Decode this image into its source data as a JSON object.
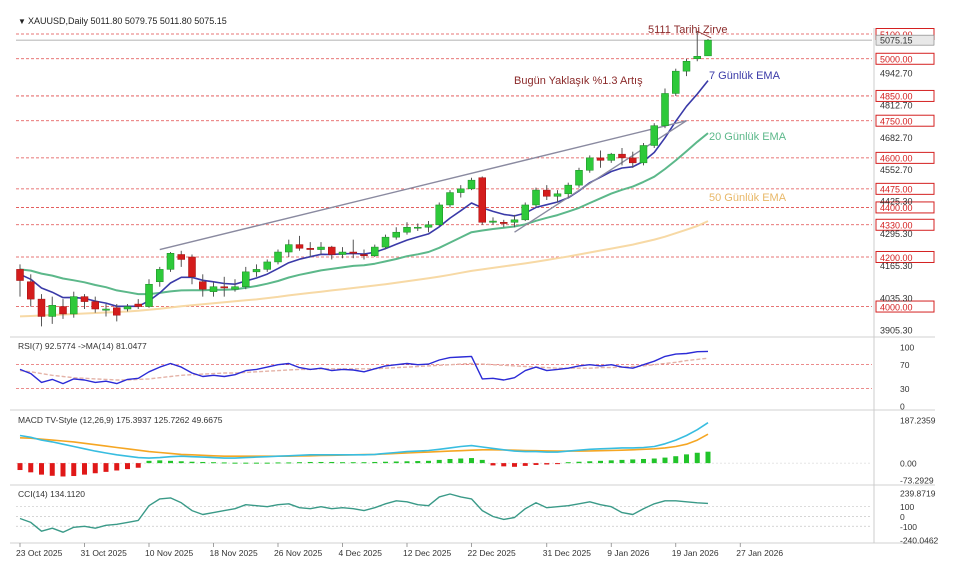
{
  "chart_data": {
    "type": "candlestick",
    "header": {
      "arrow": "▼",
      "text": "XAUUSD,Daily  5011.80 5079.75 5011.80 5075.15"
    },
    "annotations": {
      "peak": "5111 Tarihi Zirve",
      "daily_gain": "Bugün Yaklaşık %1.3 Artış",
      "ema7": "7 Günlük EMA",
      "ema20": "20 Günlük EMA",
      "ema50": "50 Günlük EMA"
    },
    "price_axis": {
      "red_levels": [
        {
          "label": "5100.00",
          "value": 5100
        },
        {
          "label": "5000.00",
          "value": 5000
        },
        {
          "label": "4850.00",
          "value": 4850
        },
        {
          "label": "4750.00",
          "value": 4750
        },
        {
          "label": "4600.00",
          "value": 4600
        },
        {
          "label": "4475.00",
          "value": 4475
        },
        {
          "label": "4400.00",
          "value": 4400
        },
        {
          "label": "4330.00",
          "value": 4330
        },
        {
          "label": "4200.00",
          "value": 4200
        },
        {
          "label": "4000.00",
          "value": 4000
        }
      ],
      "grey_ticks": [
        {
          "label": "4942.70",
          "value": 4942.7
        },
        {
          "label": "4812.70",
          "value": 4812.7
        },
        {
          "label": "4682.70",
          "value": 4682.7
        },
        {
          "label": "4552.70",
          "value": 4552.7
        },
        {
          "label": "4425.30",
          "value": 4425.3
        },
        {
          "label": "4295.30",
          "value": 4295.3
        },
        {
          "label": "4165.30",
          "value": 4165.3
        },
        {
          "label": "4035.30",
          "value": 4035.3
        },
        {
          "label": "3905.30",
          "value": 3905.3
        }
      ],
      "current": {
        "label": "5075.15",
        "value": 5075.15
      }
    },
    "x_axis_labels": [
      {
        "label": "23 Oct 2025",
        "index": 0
      },
      {
        "label": "31 Oct 2025",
        "index": 6
      },
      {
        "label": "10 Nov 2025",
        "index": 12
      },
      {
        "label": "18 Nov 2025",
        "index": 18
      },
      {
        "label": "26 Nov 2025",
        "index": 24
      },
      {
        "label": "4 Dec 2025",
        "index": 30
      },
      {
        "label": "12 Dec 2025",
        "index": 36
      },
      {
        "label": "22 Dec 2025",
        "index": 42
      },
      {
        "label": "31 Dec 2025",
        "index": 49
      },
      {
        "label": "9 Jan 2026",
        "index": 55
      },
      {
        "label": "19 Jan 2026",
        "index": 61
      },
      {
        "label": "27 Jan 2026",
        "index": 67
      }
    ],
    "candles": [
      {
        "o": 4150,
        "h": 4170,
        "l": 4040,
        "c": 4105
      },
      {
        "o": 4100,
        "h": 4130,
        "l": 4000,
        "c": 4030
      },
      {
        "o": 4030,
        "h": 4050,
        "l": 3920,
        "c": 3960
      },
      {
        "o": 3960,
        "h": 4040,
        "l": 3930,
        "c": 4005
      },
      {
        "o": 4000,
        "h": 4030,
        "l": 3950,
        "c": 3970
      },
      {
        "o": 3970,
        "h": 4060,
        "l": 3955,
        "c": 4040
      },
      {
        "o": 4040,
        "h": 4050,
        "l": 3990,
        "c": 4020
      },
      {
        "o": 4020,
        "h": 4040,
        "l": 3975,
        "c": 3990
      },
      {
        "o": 3985,
        "h": 4010,
        "l": 3960,
        "c": 3990
      },
      {
        "o": 3995,
        "h": 4010,
        "l": 3940,
        "c": 3965
      },
      {
        "o": 3990,
        "h": 4010,
        "l": 3980,
        "c": 4000
      },
      {
        "o": 4010,
        "h": 4030,
        "l": 3990,
        "c": 4000
      },
      {
        "o": 4000,
        "h": 4110,
        "l": 3995,
        "c": 4090
      },
      {
        "o": 4100,
        "h": 4160,
        "l": 4080,
        "c": 4150
      },
      {
        "o": 4150,
        "h": 4220,
        "l": 4140,
        "c": 4215
      },
      {
        "o": 4210,
        "h": 4225,
        "l": 4160,
        "c": 4190
      },
      {
        "o": 4200,
        "h": 4210,
        "l": 4090,
        "c": 4120
      },
      {
        "o": 4100,
        "h": 4130,
        "l": 4040,
        "c": 4070
      },
      {
        "o": 4060,
        "h": 4100,
        "l": 4040,
        "c": 4080
      },
      {
        "o": 4080,
        "h": 4120,
        "l": 4040,
        "c": 4075
      },
      {
        "o": 4070,
        "h": 4110,
        "l": 4060,
        "c": 4080
      },
      {
        "o": 4080,
        "h": 4160,
        "l": 4070,
        "c": 4140
      },
      {
        "o": 4140,
        "h": 4170,
        "l": 4120,
        "c": 4150
      },
      {
        "o": 4150,
        "h": 4190,
        "l": 4140,
        "c": 4180
      },
      {
        "o": 4180,
        "h": 4230,
        "l": 4170,
        "c": 4220
      },
      {
        "o": 4220,
        "h": 4270,
        "l": 4200,
        "c": 4250
      },
      {
        "o": 4250,
        "h": 4285,
        "l": 4225,
        "c": 4235
      },
      {
        "o": 4235,
        "h": 4260,
        "l": 4200,
        "c": 4230
      },
      {
        "o": 4230,
        "h": 4260,
        "l": 4210,
        "c": 4240
      },
      {
        "o": 4240,
        "h": 4245,
        "l": 4190,
        "c": 4210
      },
      {
        "o": 4210,
        "h": 4240,
        "l": 4195,
        "c": 4220
      },
      {
        "o": 4220,
        "h": 4270,
        "l": 4195,
        "c": 4215
      },
      {
        "o": 4210,
        "h": 4230,
        "l": 4190,
        "c": 4205
      },
      {
        "o": 4205,
        "h": 4250,
        "l": 4200,
        "c": 4240
      },
      {
        "o": 4240,
        "h": 4290,
        "l": 4230,
        "c": 4280
      },
      {
        "o": 4280,
        "h": 4320,
        "l": 4270,
        "c": 4300
      },
      {
        "o": 4300,
        "h": 4340,
        "l": 4290,
        "c": 4320
      },
      {
        "o": 4320,
        "h": 4335,
        "l": 4305,
        "c": 4320
      },
      {
        "o": 4320,
        "h": 4345,
        "l": 4300,
        "c": 4330
      },
      {
        "o": 4330,
        "h": 4420,
        "l": 4325,
        "c": 4410
      },
      {
        "o": 4410,
        "h": 4470,
        "l": 4400,
        "c": 4460
      },
      {
        "o": 4460,
        "h": 4490,
        "l": 4440,
        "c": 4475
      },
      {
        "o": 4475,
        "h": 4520,
        "l": 4470,
        "c": 4510
      },
      {
        "o": 4520,
        "h": 4525,
        "l": 4330,
        "c": 4340
      },
      {
        "o": 4340,
        "h": 4360,
        "l": 4330,
        "c": 4345
      },
      {
        "o": 4340,
        "h": 4350,
        "l": 4320,
        "c": 4335
      },
      {
        "o": 4340,
        "h": 4370,
        "l": 4320,
        "c": 4350
      },
      {
        "o": 4350,
        "h": 4420,
        "l": 4345,
        "c": 4410
      },
      {
        "o": 4410,
        "h": 4480,
        "l": 4400,
        "c": 4470
      },
      {
        "o": 4470,
        "h": 4490,
        "l": 4430,
        "c": 4445
      },
      {
        "o": 4445,
        "h": 4470,
        "l": 4420,
        "c": 4455
      },
      {
        "o": 4455,
        "h": 4500,
        "l": 4440,
        "c": 4490
      },
      {
        "o": 4490,
        "h": 4560,
        "l": 4480,
        "c": 4550
      },
      {
        "o": 4550,
        "h": 4610,
        "l": 4540,
        "c": 4600
      },
      {
        "o": 4600,
        "h": 4630,
        "l": 4560,
        "c": 4590
      },
      {
        "o": 4590,
        "h": 4620,
        "l": 4580,
        "c": 4615
      },
      {
        "o": 4615,
        "h": 4640,
        "l": 4570,
        "c": 4600
      },
      {
        "o": 4600,
        "h": 4625,
        "l": 4560,
        "c": 4580
      },
      {
        "o": 4580,
        "h": 4660,
        "l": 4570,
        "c": 4650
      },
      {
        "o": 4650,
        "h": 4740,
        "l": 4640,
        "c": 4730
      },
      {
        "o": 4730,
        "h": 4880,
        "l": 4720,
        "c": 4860
      },
      {
        "o": 4860,
        "h": 4960,
        "l": 4850,
        "c": 4950
      },
      {
        "o": 4950,
        "h": 5000,
        "l": 4930,
        "c": 4990
      },
      {
        "o": 5000,
        "h": 5111,
        "l": 4990,
        "c": 5010
      },
      {
        "o": 5011.8,
        "h": 5079.75,
        "l": 5011.8,
        "c": 5075.15
      }
    ],
    "lines": {
      "ema7": [
        4130,
        4110,
        4075,
        4058,
        4036,
        4037,
        4033,
        4022,
        4014,
        4001,
        4001,
        4001,
        4023,
        4055,
        4095,
        4118,
        4118,
        4106,
        4100,
        4093,
        4090,
        4103,
        4115,
        4131,
        4153,
        4177,
        4191,
        4201,
        4211,
        4210,
        4213,
        4214,
        4212,
        4219,
        4234,
        4251,
        4268,
        4281,
        4293,
        4322,
        4357,
        4387,
        4418,
        4398,
        4384,
        4372,
        4366,
        4377,
        4400,
        4411,
        4422,
        4439,
        4467,
        4500,
        4522,
        4545,
        4559,
        4564,
        4586,
        4622,
        4681,
        4748,
        4808,
        4858,
        4912
      ],
      "ema20": [
        4150,
        4145,
        4133,
        4125,
        4113,
        4106,
        4098,
        4087,
        4078,
        4065,
        4058,
        4050,
        4050,
        4055,
        4061,
        4065,
        4066,
        4066,
        4067,
        4068,
        4069,
        4076,
        4083,
        4092,
        4103,
        4117,
        4128,
        4137,
        4146,
        4152,
        4158,
        4164,
        4167,
        4173,
        4182,
        4192,
        4203,
        4211,
        4220,
        4237,
        4258,
        4279,
        4300,
        4307,
        4313,
        4318,
        4323,
        4332,
        4346,
        4358,
        4369,
        4383,
        4398,
        4418,
        4437,
        4456,
        4471,
        4484,
        4503,
        4524,
        4555,
        4590,
        4627,
        4665,
        4700
      ],
      "ema50": [
        3960,
        3962,
        3964,
        3966,
        3968,
        3970,
        3972,
        3974,
        3976,
        3978,
        3980,
        3983,
        3987,
        3991,
        3996,
        4001,
        4005,
        4009,
        4013,
        4017,
        4021,
        4025,
        4029,
        4034,
        4039,
        4045,
        4050,
        4055,
        4060,
        4065,
        4070,
        4075,
        4080,
        4085,
        4090,
        4096,
        4102,
        4108,
        4114,
        4121,
        4128,
        4136,
        4144,
        4150,
        4156,
        4162,
        4168,
        4174,
        4181,
        4188,
        4195,
        4202,
        4210,
        4218,
        4226,
        4234,
        4242,
        4250,
        4260,
        4270,
        4282,
        4296,
        4310,
        4325,
        4345
      ]
    },
    "trendlines": [
      {
        "from": {
          "index": 13,
          "value": 4230
        },
        "to": {
          "index": 62,
          "value": 4750
        }
      },
      {
        "from": {
          "index": 46,
          "value": 4300
        },
        "to": {
          "index": 62,
          "value": 4750
        }
      }
    ],
    "rsi": {
      "title": "RSI(7) 92.5774  ->MA(14) 81.0477",
      "range": [
        0,
        100
      ],
      "levels": [
        {
          "label": "100",
          "value": 100
        },
        {
          "label": "70",
          "value": 70
        },
        {
          "label": "30",
          "value": 30
        },
        {
          "label": "0",
          "value": 0
        }
      ],
      "values": [
        62,
        55,
        40,
        45,
        38,
        46,
        44,
        40,
        42,
        38,
        45,
        47,
        58,
        66,
        72,
        66,
        56,
        50,
        52,
        50,
        53,
        60,
        62,
        66,
        70,
        72,
        65,
        62,
        64,
        60,
        62,
        61,
        58,
        63,
        68,
        70,
        72,
        70,
        71,
        78,
        82,
        83,
        84,
        46,
        47,
        44,
        48,
        60,
        66,
        60,
        62,
        64,
        68,
        70,
        68,
        70,
        66,
        64,
        70,
        76,
        84,
        88,
        89,
        92,
        92.5774
      ],
      "ma": [
        60,
        58,
        55,
        52,
        50,
        48,
        47,
        46,
        45,
        44,
        44,
        45,
        46,
        48,
        50,
        52,
        53,
        54,
        55,
        56,
        56,
        57,
        58,
        59,
        60,
        61,
        62,
        62,
        63,
        63,
        63,
        63,
        63,
        63,
        64,
        65,
        66,
        67,
        68,
        69,
        70,
        71,
        72,
        71,
        70,
        69,
        68,
        67,
        66,
        65,
        64,
        64,
        64,
        64,
        65,
        65,
        66,
        67,
        68,
        70,
        72,
        74,
        77,
        79,
        81.0477
      ]
    },
    "macd": {
      "title": "MACD TV-Style (12,26,9) 175.3937 125.7262 49.6675",
      "range": [
        -73.2929,
        187.2359
      ],
      "labels": [
        {
          "label": "187.2359",
          "value": 187.2359
        },
        {
          "label": "0.00",
          "value": 0
        },
        {
          "label": "-73.2929",
          "value": -73.2929
        }
      ],
      "macd": [
        120,
        112,
        100,
        92,
        82,
        72,
        62,
        52,
        44,
        36,
        30,
        24,
        22,
        24,
        28,
        30,
        28,
        26,
        24,
        22,
        22,
        24,
        26,
        28,
        30,
        32,
        34,
        36,
        36,
        36,
        36,
        36,
        36,
        38,
        42,
        46,
        50,
        52,
        55,
        60,
        66,
        72,
        76,
        70,
        64,
        58,
        52,
        50,
        50,
        48,
        48,
        52,
        56,
        60,
        62,
        64,
        66,
        66,
        68,
        72,
        84,
        100,
        120,
        145,
        175.39
      ],
      "signal": [
        110,
        108,
        104,
        100,
        96,
        92,
        86,
        80,
        74,
        68,
        62,
        56,
        50,
        46,
        42,
        38,
        36,
        34,
        32,
        30,
        30,
        30,
        30,
        30,
        30,
        30,
        31,
        32,
        33,
        34,
        35,
        36,
        37,
        38,
        40,
        42,
        44,
        46,
        48,
        50,
        52,
        54,
        56,
        58,
        58,
        57,
        56,
        55,
        54,
        53,
        52,
        52,
        52,
        53,
        54,
        55,
        56,
        58,
        60,
        62,
        66,
        72,
        82,
        100,
        125.73
      ],
      "hist": [
        -30,
        -40,
        -50,
        -55,
        -58,
        -56,
        -50,
        -44,
        -38,
        -32,
        -26,
        -20,
        10,
        12,
        10,
        8,
        6,
        5,
        4,
        3,
        2,
        2,
        2,
        2,
        3,
        3,
        4,
        5,
        5,
        5,
        4,
        4,
        4,
        5,
        6,
        7,
        8,
        9,
        10,
        14,
        18,
        20,
        22,
        14,
        -10,
        -14,
        -16,
        -12,
        -8,
        -6,
        -4,
        4,
        6,
        8,
        10,
        12,
        14,
        16,
        18,
        20,
        24,
        30,
        38,
        45,
        49.67
      ]
    },
    "cci": {
      "title": "CCI(14) 134.1120",
      "range": [
        -240.0462,
        239.8719
      ],
      "levels": [
        {
          "label": "239.8719",
          "value": 239.8719
        },
        {
          "label": "100",
          "value": 100
        },
        {
          "label": "0",
          "value": 0
        },
        {
          "label": "-100",
          "value": -100
        },
        {
          "label": "-240.0462",
          "value": -240.0462
        }
      ],
      "values": [
        -20,
        -60,
        -150,
        -120,
        -160,
        -110,
        -100,
        -120,
        -90,
        -80,
        -60,
        -40,
        110,
        180,
        190,
        140,
        60,
        20,
        40,
        60,
        80,
        120,
        110,
        100,
        120,
        130,
        90,
        80,
        100,
        80,
        90,
        80,
        60,
        90,
        130,
        160,
        150,
        120,
        110,
        200,
        230,
        200,
        180,
        60,
        0,
        -30,
        -10,
        80,
        140,
        90,
        100,
        110,
        130,
        150,
        120,
        100,
        40,
        20,
        80,
        130,
        160,
        160,
        150,
        140,
        134.112
      ]
    }
  }
}
